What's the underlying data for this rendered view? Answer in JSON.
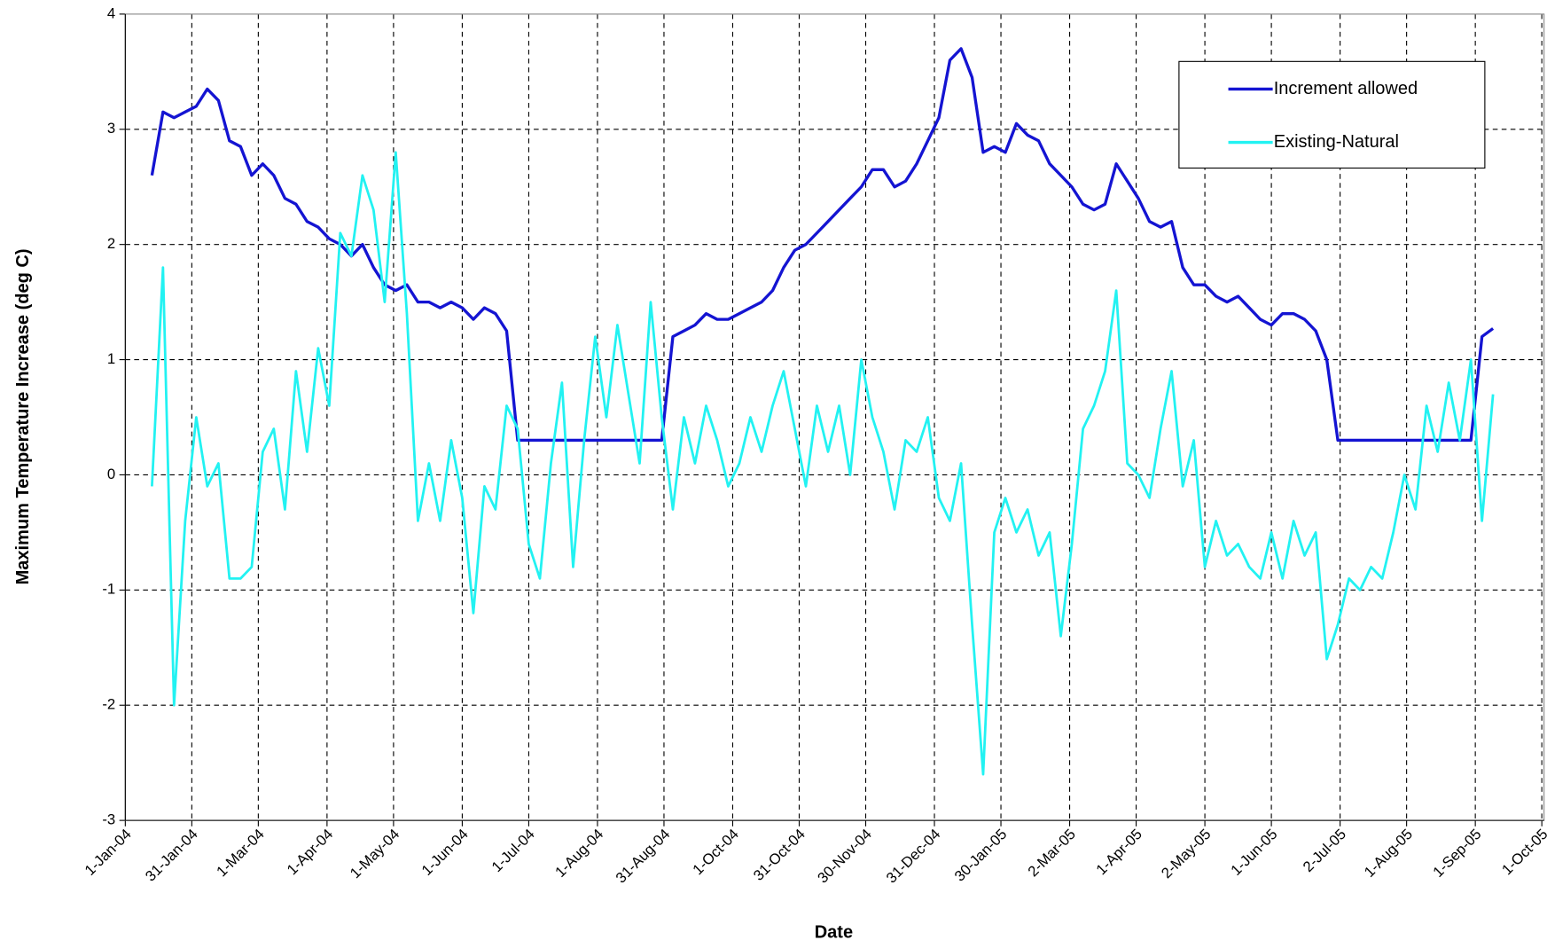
{
  "chart_data": {
    "type": "line",
    "y_label": "Maximum Temperature Increase (deg C)",
    "x_label": "Date",
    "x": [
      "2004-01-13",
      "2004-01-18",
      "2004-01-23",
      "2004-01-28",
      "2004-02-02",
      "2004-02-07",
      "2004-02-12",
      "2004-02-17",
      "2004-02-22",
      "2004-02-27",
      "2004-03-03",
      "2004-03-08",
      "2004-03-13",
      "2004-03-18",
      "2004-03-23",
      "2004-03-28",
      "2004-04-02",
      "2004-04-07",
      "2004-04-12",
      "2004-04-17",
      "2004-04-22",
      "2004-04-27",
      "2004-05-02",
      "2004-05-07",
      "2004-05-12",
      "2004-05-17",
      "2004-05-22",
      "2004-05-27",
      "2004-06-01",
      "2004-06-06",
      "2004-06-11",
      "2004-06-16",
      "2004-06-21",
      "2004-06-26",
      "2004-07-01",
      "2004-07-06",
      "2004-07-11",
      "2004-07-16",
      "2004-07-21",
      "2004-07-26",
      "2004-07-31",
      "2004-08-05",
      "2004-08-10",
      "2004-08-15",
      "2004-08-20",
      "2004-08-25",
      "2004-08-30",
      "2004-09-04",
      "2004-09-09",
      "2004-09-14",
      "2004-09-19",
      "2004-09-24",
      "2004-09-29",
      "2004-10-04",
      "2004-10-09",
      "2004-10-14",
      "2004-10-19",
      "2004-10-24",
      "2004-10-29",
      "2004-11-03",
      "2004-11-08",
      "2004-11-13",
      "2004-11-18",
      "2004-11-23",
      "2004-11-28",
      "2004-12-03",
      "2004-12-08",
      "2004-12-13",
      "2004-12-18",
      "2004-12-23",
      "2004-12-28",
      "2005-01-02",
      "2005-01-07",
      "2005-01-12",
      "2005-01-17",
      "2005-01-22",
      "2005-01-27",
      "2005-02-01",
      "2005-02-06",
      "2005-02-11",
      "2005-02-16",
      "2005-02-21",
      "2005-02-26",
      "2005-03-03",
      "2005-03-08",
      "2005-03-13",
      "2005-03-18",
      "2005-03-23",
      "2005-03-28",
      "2005-04-02",
      "2005-04-07",
      "2005-04-12",
      "2005-04-17",
      "2005-04-22",
      "2005-04-27",
      "2005-05-02",
      "2005-05-07",
      "2005-05-12",
      "2005-05-17",
      "2005-05-22",
      "2005-05-27",
      "2005-06-01",
      "2005-06-06",
      "2005-06-11",
      "2005-06-16",
      "2005-06-21",
      "2005-06-26",
      "2005-07-01",
      "2005-07-06",
      "2005-07-11",
      "2005-07-16",
      "2005-07-21",
      "2005-07-26",
      "2005-07-31",
      "2005-08-05",
      "2005-08-10",
      "2005-08-15",
      "2005-08-20",
      "2005-08-25",
      "2005-08-30",
      "2005-09-04",
      "2005-09-09"
    ],
    "series": [
      {
        "name": "Increment allowed",
        "color": "#1414d2",
        "values": [
          2.6,
          3.15,
          3.1,
          3.15,
          3.2,
          3.35,
          3.25,
          2.9,
          2.85,
          2.6,
          2.7,
          2.6,
          2.4,
          2.35,
          2.2,
          2.15,
          2.05,
          2.0,
          1.9,
          2.0,
          1.8,
          1.65,
          1.6,
          1.65,
          1.5,
          1.5,
          1.45,
          1.5,
          1.45,
          1.35,
          1.45,
          1.4,
          1.25,
          0.3,
          0.3,
          0.3,
          0.3,
          0.3,
          0.3,
          0.3,
          0.3,
          0.3,
          0.3,
          0.3,
          0.3,
          0.3,
          0.3,
          1.2,
          1.25,
          1.3,
          1.4,
          1.35,
          1.35,
          1.4,
          1.45,
          1.5,
          1.6,
          1.8,
          1.95,
          2.0,
          2.1,
          2.2,
          2.3,
          2.4,
          2.5,
          2.65,
          2.65,
          2.5,
          2.55,
          2.7,
          2.9,
          3.1,
          3.6,
          3.7,
          3.45,
          2.8,
          2.85,
          2.8,
          3.05,
          2.95,
          2.9,
          2.7,
          2.6,
          2.5,
          2.35,
          2.3,
          2.35,
          2.7,
          2.55,
          2.4,
          2.2,
          2.15,
          2.2,
          1.8,
          1.65,
          1.65,
          1.55,
          1.5,
          1.55,
          1.45,
          1.35,
          1.3,
          1.4,
          1.4,
          1.35,
          1.25,
          1.0,
          0.3,
          0.3,
          0.3,
          0.3,
          0.3,
          0.3,
          0.3,
          0.3,
          0.3,
          0.3,
          0.3,
          0.3,
          0.3,
          1.2,
          1.27
        ]
      },
      {
        "name": "Existing-Natural",
        "color": "#22f2f2",
        "values": [
          -0.1,
          1.8,
          -2.0,
          -0.4,
          0.5,
          -0.1,
          0.1,
          -0.9,
          -0.9,
          -0.8,
          0.2,
          0.4,
          -0.3,
          0.9,
          0.2,
          1.1,
          0.6,
          2.1,
          1.9,
          2.6,
          2.3,
          1.5,
          2.8,
          1.4,
          -0.4,
          0.1,
          -0.4,
          0.3,
          -0.2,
          -1.2,
          -0.1,
          -0.3,
          0.6,
          0.4,
          -0.6,
          -0.9,
          0.1,
          0.8,
          -0.8,
          0.3,
          1.2,
          0.5,
          1.3,
          0.7,
          0.1,
          1.5,
          0.5,
          -0.3,
          0.5,
          0.1,
          0.6,
          0.3,
          -0.1,
          0.1,
          0.5,
          0.2,
          0.6,
          0.9,
          0.4,
          -0.1,
          0.6,
          0.2,
          0.6,
          0.0,
          1.0,
          0.5,
          0.2,
          -0.3,
          0.3,
          0.2,
          0.5,
          -0.2,
          -0.4,
          0.1,
          -1.3,
          -2.6,
          -0.5,
          -0.2,
          -0.5,
          -0.3,
          -0.7,
          -0.5,
          -1.4,
          -0.6,
          0.4,
          0.6,
          0.9,
          1.6,
          0.1,
          0.0,
          -0.2,
          0.4,
          0.9,
          -0.1,
          0.3,
          -0.8,
          -0.4,
          -0.7,
          -0.6,
          -0.8,
          -0.9,
          -0.5,
          -0.9,
          -0.4,
          -0.7,
          -0.5,
          -1.6,
          -1.3,
          -0.9,
          -1.0,
          -0.8,
          -0.9,
          -0.5,
          0.0,
          -0.3,
          0.6,
          0.2,
          0.8,
          0.3,
          1.0,
          -0.4,
          0.7
        ]
      }
    ],
    "xlim": [
      "2004-01-01",
      "2005-10-02"
    ],
    "xticks": [
      {
        "value": "2004-01-01",
        "label": "1-Jan-04"
      },
      {
        "value": "2004-01-31",
        "label": "31-Jan-04"
      },
      {
        "value": "2004-03-01",
        "label": "1-Mar-04"
      },
      {
        "value": "2004-04-01",
        "label": "1-Apr-04"
      },
      {
        "value": "2004-05-01",
        "label": "1-May-04"
      },
      {
        "value": "2004-06-01",
        "label": "1-Jun-04"
      },
      {
        "value": "2004-07-01",
        "label": "1-Jul-04"
      },
      {
        "value": "2004-08-01",
        "label": "1-Aug-04"
      },
      {
        "value": "2004-08-31",
        "label": "31-Aug-04"
      },
      {
        "value": "2004-10-01",
        "label": "1-Oct-04"
      },
      {
        "value": "2004-10-31",
        "label": "31-Oct-04"
      },
      {
        "value": "2004-11-30",
        "label": "30-Nov-04"
      },
      {
        "value": "2004-12-31",
        "label": "31-Dec-04"
      },
      {
        "value": "2005-01-30",
        "label": "30-Jan-05"
      },
      {
        "value": "2005-03-02",
        "label": "2-Mar-05"
      },
      {
        "value": "2005-04-01",
        "label": "1-Apr-05"
      },
      {
        "value": "2005-05-02",
        "label": "2-May-05"
      },
      {
        "value": "2005-06-01",
        "label": "1-Jun-05"
      },
      {
        "value": "2005-07-02",
        "label": "2-Jul-05"
      },
      {
        "value": "2005-08-01",
        "label": "1-Aug-05"
      },
      {
        "value": "2005-09-01",
        "label": "1-Sep-05"
      },
      {
        "value": "2005-10-01",
        "label": "1-Oct-05"
      }
    ],
    "ylim": [
      -3,
      4
    ],
    "yticks": [
      -3,
      -2,
      -1,
      0,
      1,
      2,
      3,
      4
    ],
    "grid": true,
    "legend": "upper right"
  }
}
